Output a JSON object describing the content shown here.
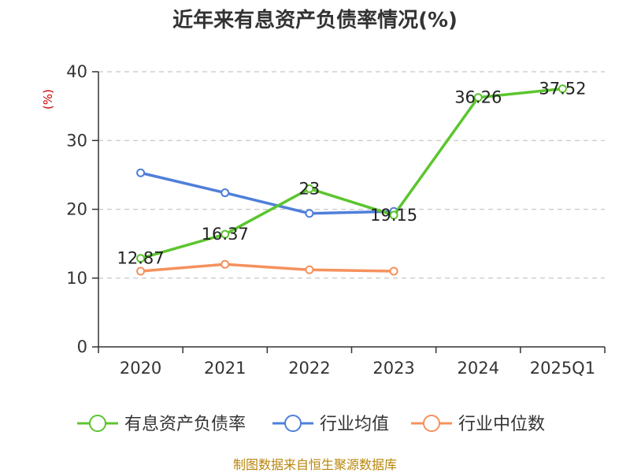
{
  "chart_data": {
    "type": "line",
    "title": "近年来有息资产负债率情况(%)",
    "unit_label": "(%)",
    "categories": [
      "2020",
      "2021",
      "2022",
      "2023",
      "2024",
      "2025Q1"
    ],
    "yticks": [
      "0",
      "10",
      "20",
      "30",
      "40"
    ],
    "ylim": [
      0,
      40
    ],
    "grid": true,
    "legend_position": "bottom",
    "series": [
      {
        "name": "有息资产负债率",
        "color": "#5cc52e",
        "values": [
          12.87,
          16.37,
          23,
          19.15,
          36.26,
          37.52
        ],
        "labels": [
          "12.87",
          "16.37",
          "23",
          "19.15",
          "36.26",
          "37.52"
        ]
      },
      {
        "name": "行业均值",
        "color": "#4f7fd9",
        "values": [
          25.3,
          22.4,
          19.4,
          19.7,
          null,
          null
        ]
      },
      {
        "name": "行业中位数",
        "color": "#f5915d",
        "values": [
          11.0,
          12.0,
          11.2,
          11.0,
          null,
          null
        ]
      }
    ],
    "source": "制图数据来自恒生聚源数据库"
  }
}
